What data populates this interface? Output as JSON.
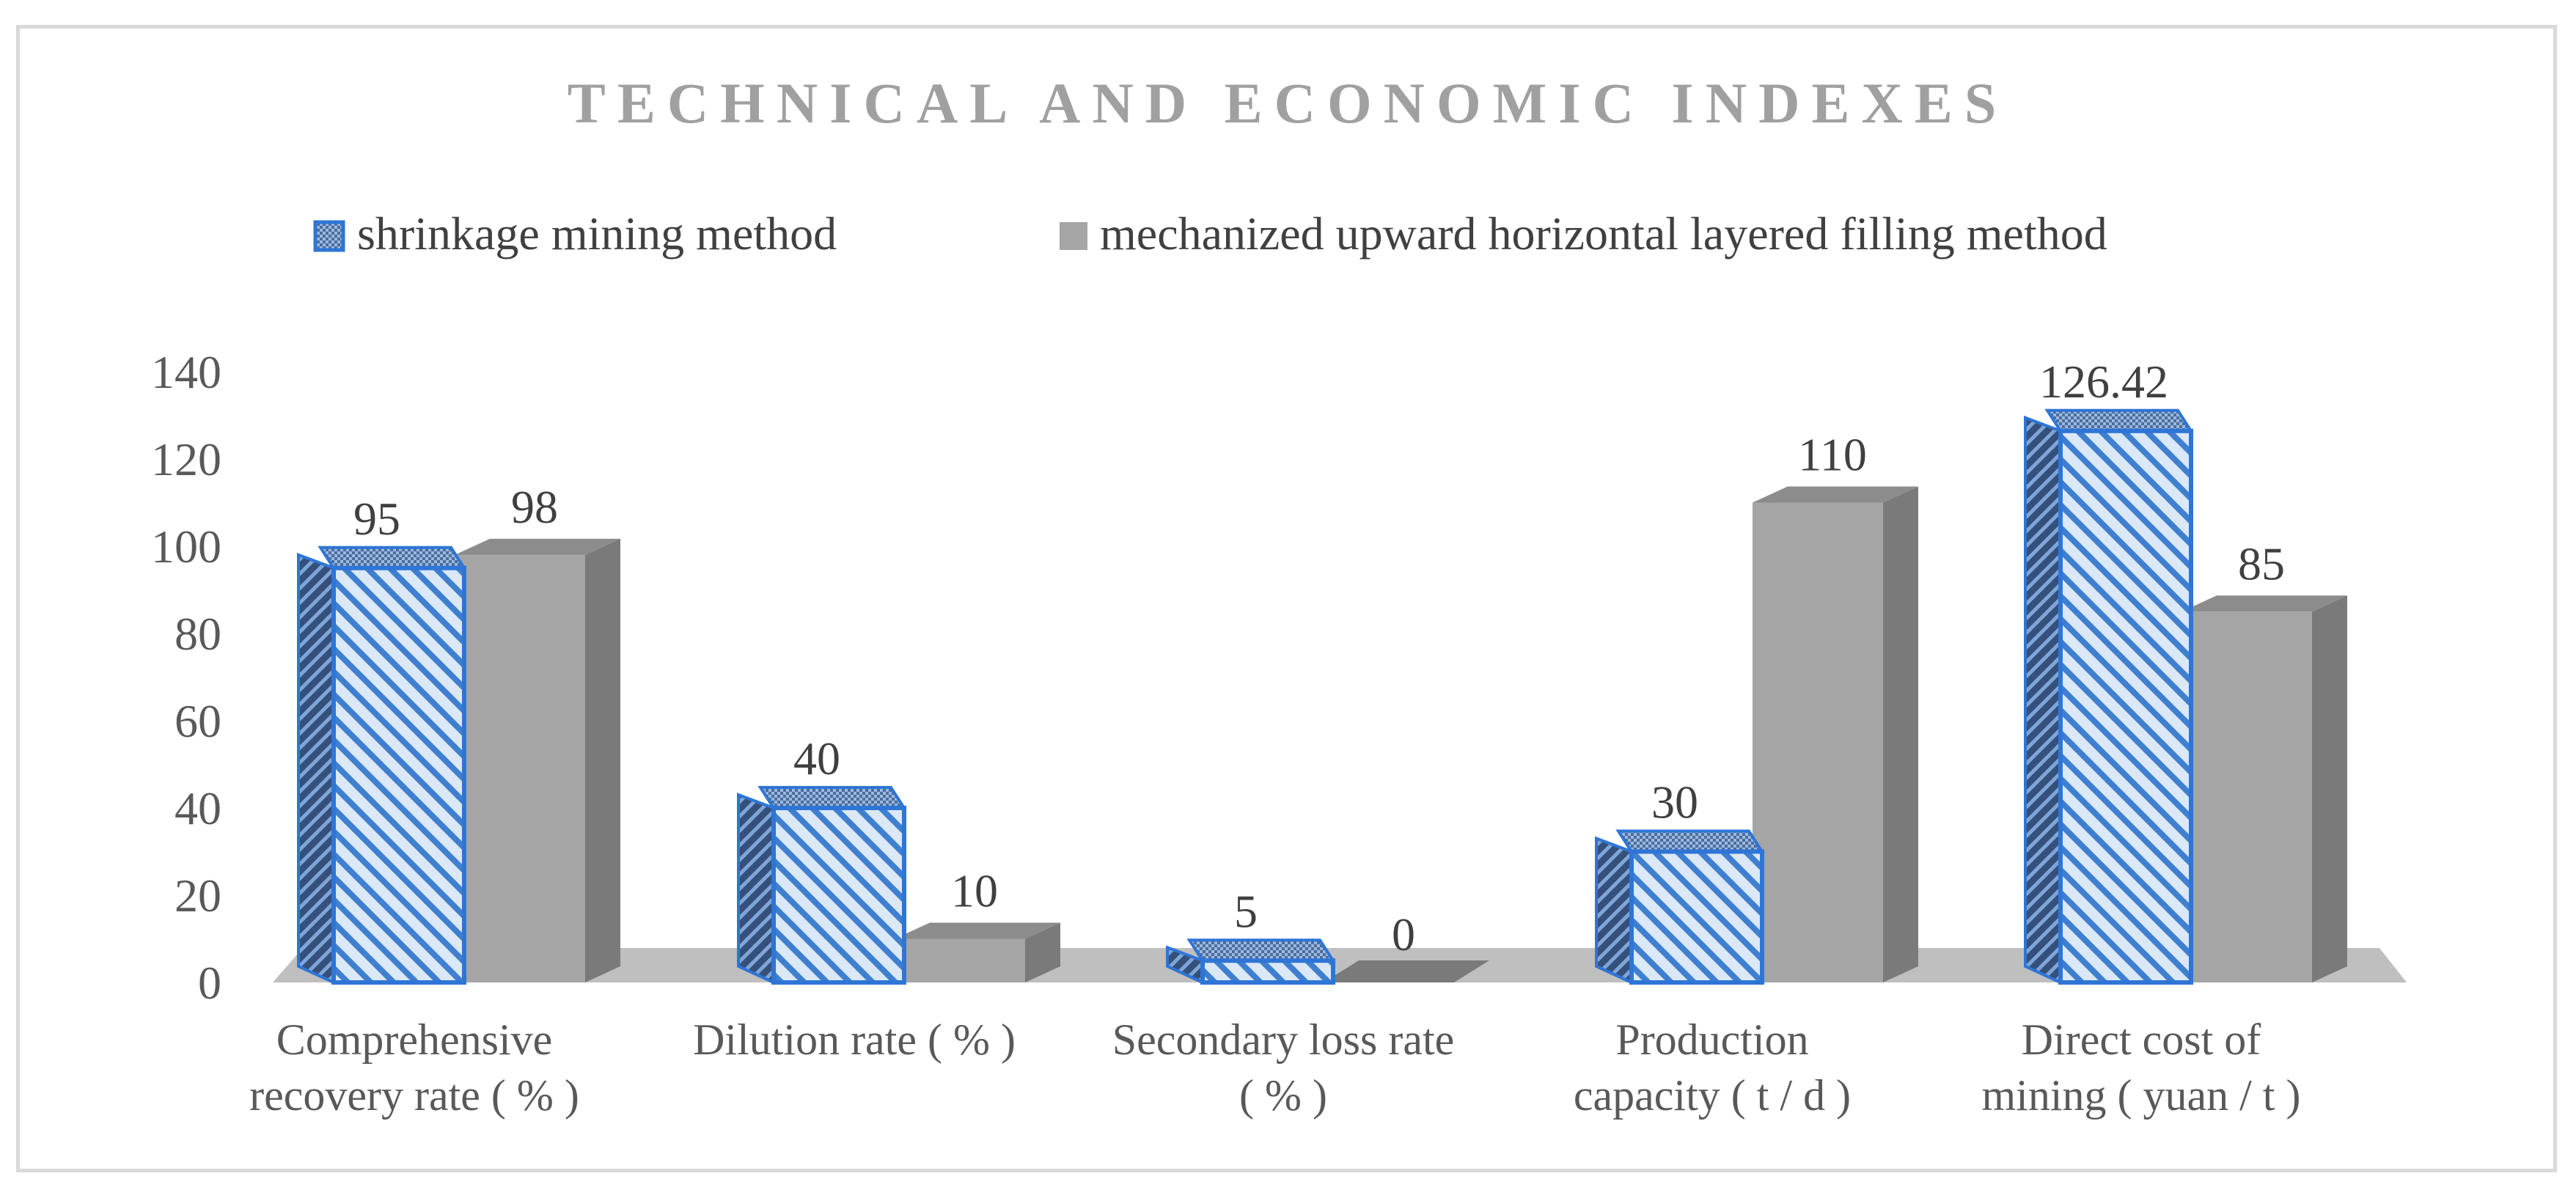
{
  "chart_data": {
    "type": "bar",
    "title": "TECHNICAL AND ECONOMIC INDEXES",
    "categories": [
      [
        "Comprehensive",
        "recovery rate ( % )"
      ],
      [
        "Dilution rate ( % )"
      ],
      [
        "Secondary loss rate",
        "( % )"
      ],
      [
        "Production",
        "capacity ( t / d )"
      ],
      [
        "Direct cost of",
        "mining ( yuan / t )"
      ]
    ],
    "series": [
      {
        "name": "shrinkage mining method",
        "values": [
          95,
          40,
          5,
          30,
          126.42
        ],
        "labels": [
          "95",
          "40",
          "5",
          "30",
          "126.42"
        ]
      },
      {
        "name": "mechanized upward horizontal layered filling method",
        "values": [
          98,
          10,
          0,
          110,
          85
        ],
        "labels": [
          "98",
          "10",
          "0",
          "110",
          "85"
        ]
      }
    ],
    "y_ticks": [
      "0",
      "20",
      "40",
      "60",
      "80",
      "100",
      "120",
      "140"
    ],
    "ylim": [
      0,
      140
    ],
    "legend_position": "top",
    "xlabel": "",
    "ylabel": "",
    "colors": {
      "series1_edge": "#2e75d6",
      "series1_fill": "#dbe8f7",
      "series1_hatch": "#3f7fd0",
      "series2_front": "#a5a5a5",
      "series2_side": "#7a7a7a",
      "series2_top": "#8c8c8c",
      "floor": "#bfbfbf",
      "title": "#a0a0a0",
      "text": "#404040"
    }
  }
}
